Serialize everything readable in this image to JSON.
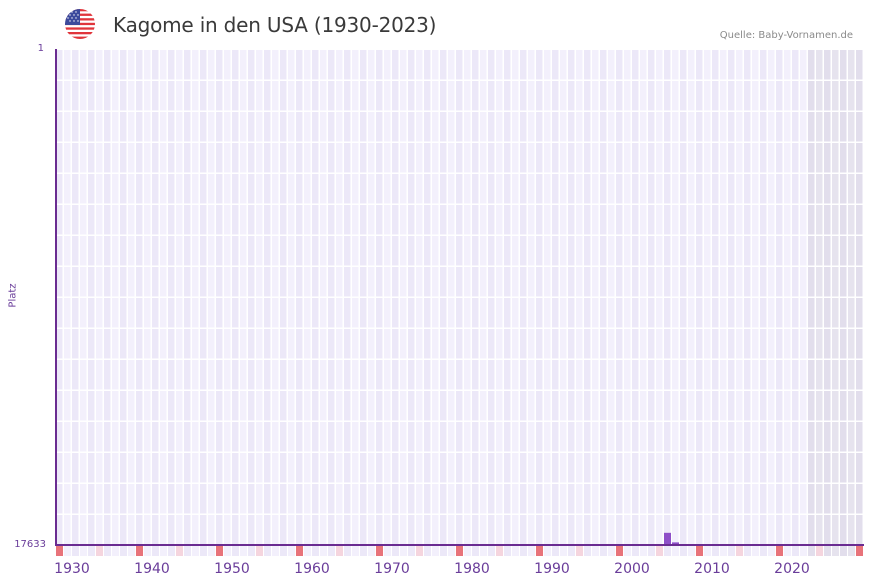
{
  "header": {
    "title": "Kagome in den USA (1930-2023)",
    "source": "Quelle: Baby-Vornamen.de",
    "flag_icon": "us-flag-icon"
  },
  "colors": {
    "axis": "#6a2c91",
    "bar": "#8e4fc8",
    "grid_light": "#f3f0fc",
    "grid_alt": "#ece8f8",
    "future_shade": "#e2deec",
    "decade_marker": "#e8737a",
    "half_decade_marker": "#f5d5de"
  },
  "chart_data": {
    "type": "bar",
    "title": "Kagome in den USA (1930-2023)",
    "xlabel": "",
    "ylabel": "Platz",
    "y_ticks": [
      "1",
      "17633"
    ],
    "ylim": [
      17633,
      1
    ],
    "y_inverted": true,
    "x_ticks": [
      "1930",
      "1940",
      "1950",
      "1960",
      "1970",
      "1980",
      "1990",
      "2000",
      "2010",
      "2020"
    ],
    "x_range": [
      1930,
      2030
    ],
    "grid": true,
    "shaded_future_from": 2024,
    "series": [
      {
        "name": "Kagome",
        "points": [
          {
            "year": 2006,
            "rank": 17200
          },
          {
            "year": 2007,
            "rank": 17540
          }
        ]
      }
    ]
  },
  "axis": {
    "y_top": "1",
    "y_bottom": "17633",
    "y_label": "Platz"
  }
}
